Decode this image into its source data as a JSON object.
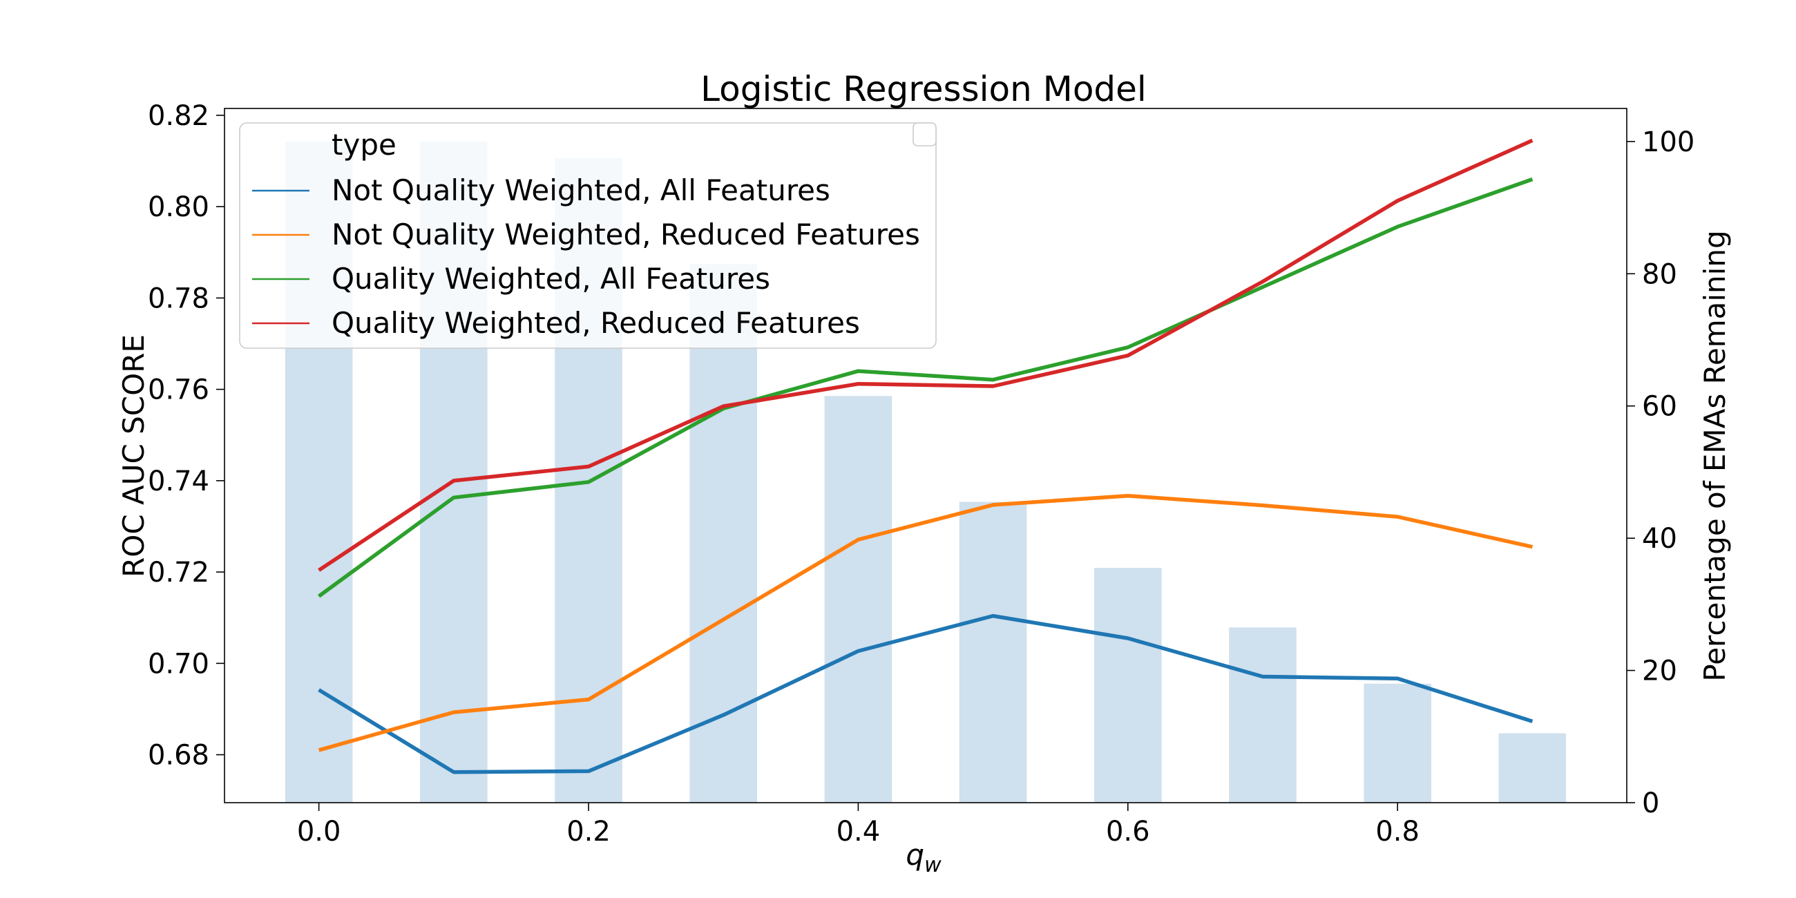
{
  "chart_data": {
    "type": "line",
    "title": "Logistic Regression Model",
    "xlabel_base": "q",
    "xlabel_sub": "w",
    "ylabel": "ROC AUC SCORE",
    "y2label": "Percentage of EMAs Remaining",
    "x": [
      0.0,
      0.1,
      0.2,
      0.3,
      0.4,
      0.5,
      0.6,
      0.7,
      0.8,
      0.9
    ],
    "xlim": [
      -0.07,
      0.97
    ],
    "ylim": [
      0.6695,
      0.8215
    ],
    "y2lim": [
      0,
      105
    ],
    "x_ticks": [
      "0.0",
      "0.2",
      "0.4",
      "0.6",
      "0.8"
    ],
    "y_ticks": [
      "0.68",
      "0.70",
      "0.72",
      "0.74",
      "0.76",
      "0.78",
      "0.80",
      "0.82"
    ],
    "y2_ticks": [
      "0",
      "20",
      "40",
      "60",
      "80",
      "100"
    ],
    "bars": {
      "color": "#cfe0ee",
      "width": 0.05,
      "values": [
        100,
        100,
        97.5,
        81.5,
        61.5,
        45.5,
        35.5,
        26.5,
        18,
        10.5
      ]
    },
    "legend": {
      "title": "type",
      "position": "top-left"
    },
    "series": [
      {
        "name": "Not Quality Weighted, All Features",
        "color": "#1f77b4",
        "values": [
          0.6942,
          0.6762,
          0.6764,
          0.6887,
          0.7027,
          0.7104,
          0.7055,
          0.6971,
          0.6967,
          0.6873
        ]
      },
      {
        "name": "Not Quality Weighted, Reduced Features",
        "color": "#ff7f0e",
        "values": [
          0.681,
          0.6893,
          0.6921,
          0.7096,
          0.7271,
          0.7347,
          0.7367,
          0.7346,
          0.7321,
          0.7255
        ]
      },
      {
        "name": "Quality Weighted, All Features",
        "color": "#2ca02c",
        "values": [
          0.7147,
          0.7363,
          0.7397,
          0.7558,
          0.764,
          0.7621,
          0.7692,
          0.7824,
          0.7956,
          0.806
        ]
      },
      {
        "name": "Quality Weighted, Reduced Features",
        "color": "#d62728",
        "values": [
          0.7204,
          0.74,
          0.7431,
          0.7563,
          0.7612,
          0.7607,
          0.7674,
          0.7836,
          0.8013,
          0.8145
        ]
      }
    ]
  }
}
